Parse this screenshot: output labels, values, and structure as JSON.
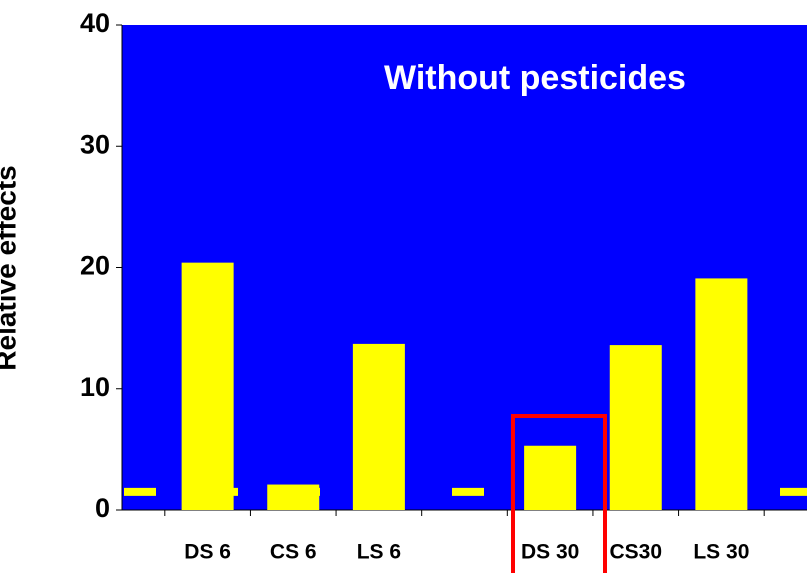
{
  "chart_data": {
    "type": "bar",
    "title": "Without pesticides",
    "y_label": "Relative effects",
    "categories": [
      "DS 6",
      "CS 6",
      "LS 6",
      null,
      "DS 30",
      "CS30",
      "LS 30"
    ],
    "values": [
      20.4,
      2.1,
      13.7,
      null,
      5.3,
      13.6,
      19.1
    ],
    "color": "#ffff00",
    "background": "#0000ff",
    "reference_line": 1.5,
    "reference_color": "#ffff00",
    "ylim": [
      0,
      40
    ],
    "yticks": [
      0,
      10,
      20,
      30,
      40
    ]
  }
}
